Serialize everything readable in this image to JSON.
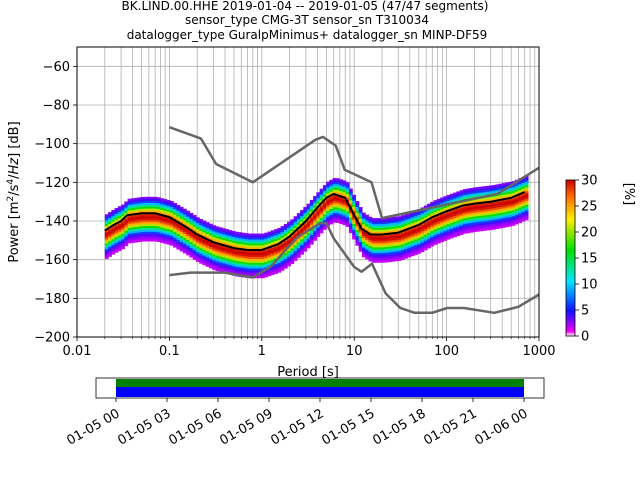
{
  "title": {
    "line1": "BK.LIND.00.HHE   2019-01-04 -- 2019-01-05  (47/47 segments)",
    "line2": "sensor_type CMG-3T sensor_sn T310034",
    "line3": "datalogger_type GuralpMinimus+ datalogger_sn MINP-DF59"
  },
  "colorbar": {
    "label": "[%]",
    "ticks": [
      "0",
      "5",
      "10",
      "15",
      "20",
      "25",
      "30"
    ]
  },
  "chart_data": {
    "type": "heatmap",
    "title": "BK.LIND.00.HHE   2019-01-04 -- 2019-01-05  (47/47 segments)",
    "xlabel": "Period [s]",
    "ylabel": "Power [m²/s⁴/Hz] [dB]",
    "xscale": "log",
    "xlim": [
      0.01,
      1000
    ],
    "ylim": [
      -200,
      -50
    ],
    "xticks": [
      "0.01",
      "0.1",
      "1",
      "10",
      "100",
      "1000"
    ],
    "yticks": [
      "−60",
      "−80",
      "−100",
      "−120",
      "−140",
      "−160",
      "−180",
      "−200"
    ],
    "grid": true,
    "colormap_range_percent": [
      0,
      30
    ],
    "mean_psd": {
      "period": [
        0.02,
        0.025,
        0.03,
        0.035,
        0.05,
        0.07,
        0.1,
        0.15,
        0.2,
        0.3,
        0.5,
        0.7,
        1.0,
        1.5,
        2.0,
        3.0,
        4.0,
        5.0,
        6.0,
        8.0,
        10.0,
        12.0,
        15.0,
        20.0,
        30.0,
        50.0,
        70.0,
        100.0,
        150.0,
        200.0,
        300.0,
        500.0,
        700.0
      ],
      "db": [
        -145,
        -142,
        -140,
        -137,
        -136,
        -136,
        -138,
        -143,
        -147,
        -151,
        -154,
        -155,
        -155,
        -152,
        -148,
        -140,
        -133,
        -128,
        -126,
        -128,
        -137,
        -144,
        -147,
        -147,
        -146,
        -142,
        -138,
        -135,
        -132,
        -131,
        -130,
        -128,
        -125
      ]
    },
    "noise_models": [
      {
        "name": "high",
        "period": [
          0.1,
          0.22,
          0.32,
          0.8,
          3.8,
          4.6,
          6.3,
          7.9,
          15.4,
          20.0,
          354.8,
          1000.0
        ],
        "db": [
          -91.5,
          -97.4,
          -110.5,
          -120.0,
          -98.0,
          -96.5,
          -101.0,
          -113.5,
          -120.0,
          -138.5,
          -126.0,
          -112.5
        ]
      },
      {
        "name": "low",
        "period": [
          0.1,
          0.17,
          0.4,
          0.8,
          1.24,
          2.4,
          4.3,
          5.0,
          6.0,
          10.0,
          12.0,
          15.6,
          21.9,
          31.6,
          45.0,
          70.0,
          101.0,
          154.0,
          328.0,
          600.0,
          1000.0
        ],
        "db": [
          -168.0,
          -166.7,
          -166.7,
          -169.2,
          -163.7,
          -148.6,
          -141.1,
          -141.1,
          -149.0,
          -163.8,
          -166.2,
          -162.1,
          -177.5,
          -185.0,
          -187.5,
          -187.5,
          -185.0,
          -185.0,
          -187.5,
          -184.4,
          -178.0
        ]
      }
    ],
    "timeline": {
      "start": "01-05 00",
      "end": "01-06 00",
      "tick_labels": [
        "01-05 00",
        "01-05 03",
        "01-05 06",
        "01-05 09",
        "01-05 12",
        "01-05 15",
        "01-05 18",
        "01-05 21",
        "01-06 00"
      ],
      "tick_hours": [
        0,
        3,
        6,
        9,
        12,
        15,
        18,
        21,
        24
      ],
      "coverage_hours": [
        [
          0,
          24
        ]
      ],
      "bars": [
        "green",
        "blue"
      ]
    }
  }
}
